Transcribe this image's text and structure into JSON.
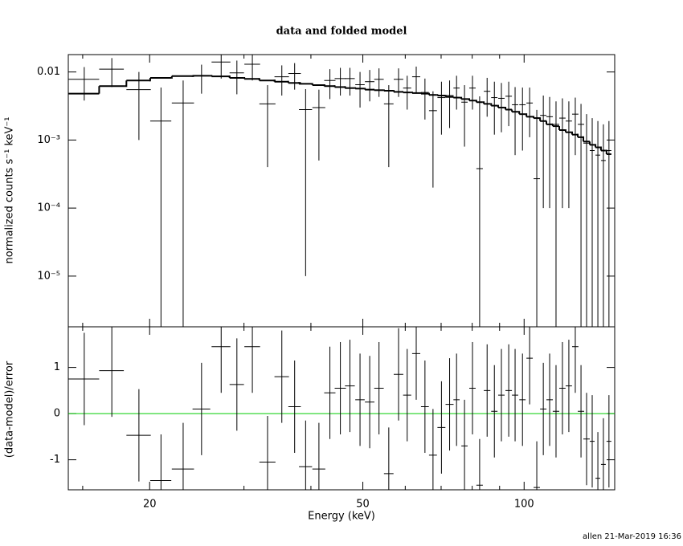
{
  "chart_data": [
    {
      "type": "errorbar",
      "title": "data and folded model",
      "ylabel": "normalized counts s⁻¹ keV⁻¹",
      "xscale": "log",
      "yscale": "log",
      "xlim": [
        14.1,
        147.6
      ],
      "ylim": [
        1.8e-06,
        0.018
      ],
      "yticks": [
        0.01,
        {
          "value": 0.001,
          "label": "10⁻³"
        },
        {
          "value": 0.0001,
          "label": "10⁻⁴"
        },
        {
          "value": 1e-05,
          "label": "10⁻⁵"
        }
      ],
      "color": "#000000",
      "x": [
        15.1,
        17.0,
        19.1,
        21.0,
        23.1,
        25.0,
        27.2,
        29.1,
        31.1,
        33.2,
        35.3,
        37.3,
        39.1,
        41.4,
        43.4,
        45.4,
        47.3,
        49.4,
        51.5,
        53.6,
        55.9,
        58.3,
        60.5,
        62.9,
        65.3,
        67.6,
        70.1,
        72.6,
        74.8,
        77.4,
        80.1,
        82.6,
        85.3,
        88.0,
        90.7,
        93.6,
        96.2,
        99.3,
        102.4,
        105.6,
        108.6,
        111.6,
        114.7,
        117.9,
        121.2,
        124.6,
        127.7,
        130.8,
        134.0,
        137.3,
        140.6,
        144.0
      ],
      "xerr": [
        1.0,
        0.9,
        1.0,
        0.95,
        1.1,
        0.95,
        1.1,
        0.9,
        1.05,
        1.15,
        1.1,
        1.0,
        1.1,
        1.15,
        1.05,
        1.1,
        1.0,
        1.0,
        1.05,
        1.1,
        1.15,
        1.2,
        1.05,
        1.1,
        1.1,
        1.15,
        1.2,
        1.25,
        1.0,
        1.05,
        1.1,
        1.15,
        1.2,
        1.2,
        1.25,
        1.3,
        1.3,
        1.35,
        1.4,
        1.45,
        1.5,
        1.55,
        1.6,
        1.6,
        1.65,
        1.7,
        1.75,
        1.8,
        1.4,
        1.4,
        1.45,
        1.5
      ],
      "values": [
        0.0078,
        0.011,
        0.0055,
        0.0019,
        0.0035,
        0.0088,
        0.014,
        0.0097,
        0.013,
        0.0034,
        0.0085,
        0.0095,
        0.0028,
        0.003,
        0.0075,
        0.008,
        0.008,
        0.0065,
        0.0072,
        0.0078,
        0.0034,
        0.0078,
        0.0058,
        0.0085,
        0.005,
        0.0027,
        0.0042,
        0.0045,
        0.0058,
        0.0036,
        0.0058,
        0.00038,
        0.0052,
        0.0042,
        0.0041,
        0.0044,
        0.0033,
        0.0033,
        0.0035,
        0.00027,
        0.0023,
        0.0022,
        0.0017,
        0.0021,
        0.0019,
        0.0024,
        0.0017,
        0.0009,
        0.0007,
        0.0006,
        0.0005,
        0.0007
      ],
      "errors": [
        0.004,
        0.005,
        0.0045,
        0.004,
        0.004,
        0.004,
        0.006,
        0.005,
        0.0055,
        0.003,
        0.004,
        0.004,
        0.00279,
        0.0025,
        0.0035,
        0.0035,
        0.0035,
        0.0035,
        0.0035,
        0.0035,
        0.003,
        0.0035,
        0.003,
        0.0035,
        0.003,
        0.0025,
        0.003,
        0.003,
        0.003,
        0.0028,
        0.003,
        0.004,
        0.003,
        0.003,
        0.0028,
        0.0028,
        0.0027,
        0.0026,
        0.0024,
        0.0025,
        0.0022,
        0.0021,
        0.002,
        0.002,
        0.0018,
        0.0018,
        0.0017,
        0.0015,
        0.0014,
        0.0013,
        0.0012,
        0.0012
      ],
      "model": [
        0.0048,
        0.0062,
        0.0075,
        0.0082,
        0.0087,
        0.0088,
        0.0086,
        0.0082,
        0.0079,
        0.0075,
        0.0072,
        0.0069,
        0.0067,
        0.0064,
        0.0062,
        0.006,
        0.0058,
        0.0057,
        0.0055,
        0.0054,
        0.0053,
        0.0051,
        0.005,
        0.0049,
        0.0048,
        0.0046,
        0.0045,
        0.0043,
        0.0042,
        0.004,
        0.0038,
        0.0036,
        0.0034,
        0.0032,
        0.003,
        0.0028,
        0.0026,
        0.0024,
        0.0022,
        0.0021,
        0.0019,
        0.0017,
        0.0016,
        0.0014,
        0.0013,
        0.0012,
        0.0011,
        0.00095,
        0.00085,
        0.00078,
        0.0007,
        0.00062
      ]
    },
    {
      "type": "errorbar",
      "xlabel": "Energy (keV)",
      "ylabel": "(data-model)/error",
      "xscale": "log",
      "yscale": "linear",
      "xlim": [
        14.1,
        147.6
      ],
      "ylim": [
        -1.65,
        1.88
      ],
      "xticks": [
        20,
        50,
        100
      ],
      "xminorticks": [
        15,
        30,
        40,
        60,
        70,
        80,
        90
      ],
      "yticks": [
        -1,
        0,
        1
      ],
      "color": "#000000",
      "zero_line": {
        "value": 0,
        "color": "#00cc00"
      },
      "x": [
        15.1,
        17.0,
        19.1,
        21.0,
        23.1,
        25.0,
        27.2,
        29.1,
        31.1,
        33.2,
        35.3,
        37.3,
        39.1,
        41.4,
        43.4,
        45.4,
        47.3,
        49.4,
        51.5,
        53.6,
        55.9,
        58.3,
        60.5,
        62.9,
        65.3,
        67.6,
        70.1,
        72.6,
        74.8,
        77.4,
        80.1,
        82.6,
        85.3,
        88.0,
        90.7,
        93.6,
        96.2,
        99.3,
        102.4,
        105.6,
        108.6,
        111.6,
        114.7,
        117.9,
        121.2,
        124.6,
        127.7,
        130.8,
        134.0,
        137.3,
        140.6,
        144.0
      ],
      "xerr": [
        1.0,
        0.9,
        1.0,
        0.95,
        1.1,
        0.95,
        1.1,
        0.9,
        1.05,
        1.15,
        1.1,
        1.0,
        1.1,
        1.15,
        1.05,
        1.1,
        1.0,
        1.0,
        1.05,
        1.1,
        1.15,
        1.2,
        1.05,
        1.1,
        1.1,
        1.15,
        1.2,
        1.25,
        1.0,
        1.05,
        1.1,
        1.15,
        1.2,
        1.2,
        1.25,
        1.3,
        1.3,
        1.35,
        1.4,
        1.45,
        1.5,
        1.55,
        1.6,
        1.6,
        1.65,
        1.7,
        1.75,
        1.8,
        1.4,
        1.4,
        1.45,
        1.5
      ],
      "values": [
        0.75,
        0.93,
        -0.47,
        -1.45,
        -1.2,
        0.1,
        1.45,
        0.63,
        1.45,
        -1.05,
        0.8,
        0.15,
        -1.15,
        -1.2,
        0.45,
        0.55,
        0.6,
        0.3,
        0.25,
        0.55,
        -1.3,
        0.85,
        0.4,
        1.3,
        0.15,
        -0.9,
        -0.3,
        0.2,
        0.3,
        -0.7,
        0.55,
        -1.55,
        0.5,
        0.05,
        0.4,
        0.5,
        0.4,
        0.3,
        1.2,
        -1.6,
        0.1,
        0.3,
        0.05,
        0.55,
        0.6,
        1.45,
        0.05,
        -0.55,
        -0.6,
        -1.4,
        -1.1,
        -0.6
      ],
      "errors": [
        1,
        1,
        1,
        1,
        1,
        1,
        1,
        1,
        1,
        1,
        1,
        1,
        1,
        1,
        1,
        1,
        1,
        1,
        1,
        1,
        1,
        1,
        1,
        1,
        1,
        1,
        1,
        1,
        1,
        1,
        1,
        1,
        1,
        1,
        1,
        1,
        1,
        1,
        1,
        1,
        1,
        1,
        1,
        1,
        1,
        1,
        1,
        1,
        1,
        1,
        1,
        1
      ]
    }
  ],
  "footer": "allen 21-Mar-2019 16:36"
}
